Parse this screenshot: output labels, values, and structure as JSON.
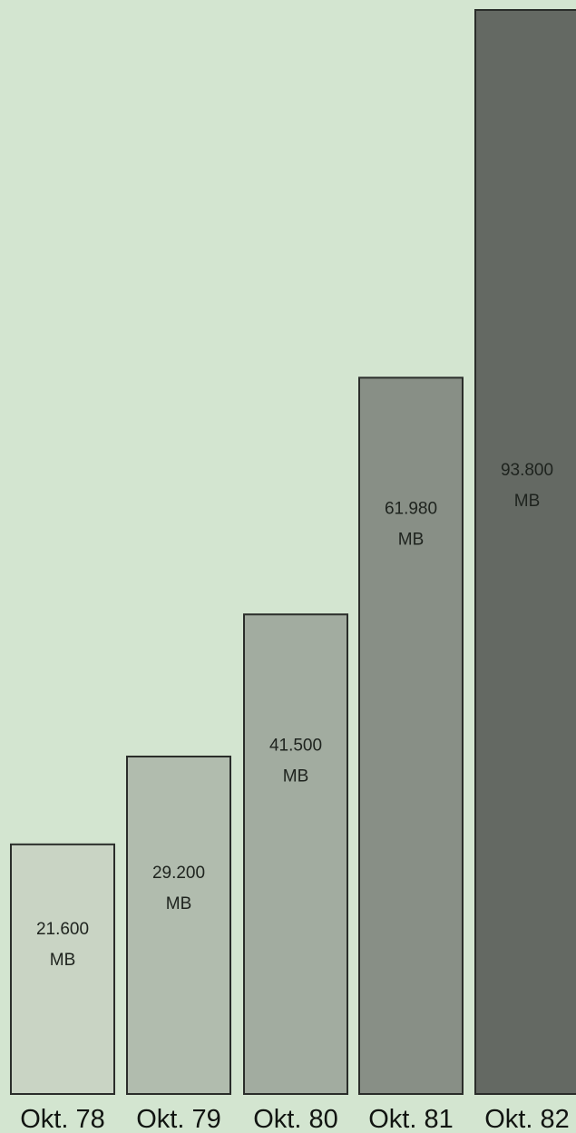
{
  "chart_data": {
    "type": "bar",
    "categories": [
      "Okt. 78",
      "Okt. 79",
      "Okt. 80",
      "Okt. 81",
      "Okt. 82"
    ],
    "values": [
      21600,
      29200,
      41500,
      61980,
      93800
    ],
    "unit": "MB",
    "value_labels": [
      "21.600",
      "29.200",
      "41.500",
      "61.980",
      "93.800"
    ],
    "title": "",
    "xlabel": "",
    "ylabel": "",
    "ylim": [
      0,
      93800
    ],
    "grid": false,
    "legend": "none",
    "colors": {
      "background": "#d3e5d0",
      "bars": [
        "#c9d4c4",
        "#b1bcae",
        "#a2aca0",
        "#888f86",
        "#646963"
      ],
      "outline": "#2a2d2a"
    }
  }
}
